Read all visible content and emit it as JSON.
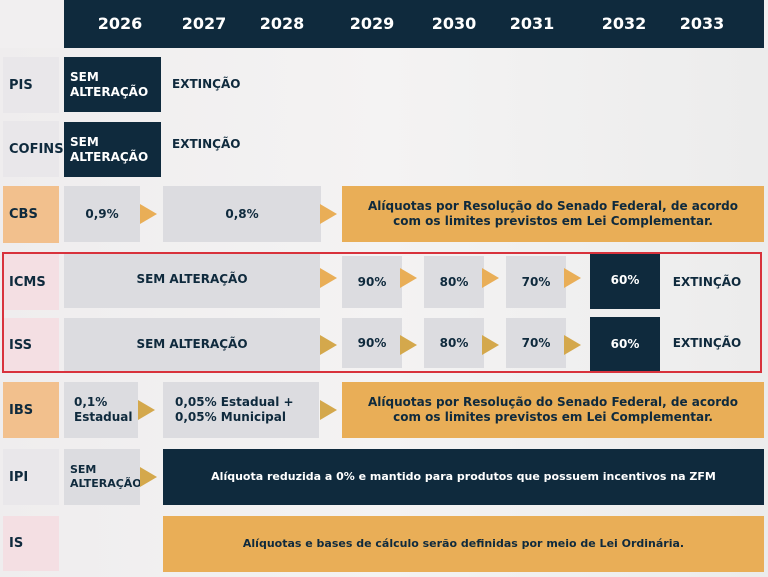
{
  "years": [
    "2026",
    "2027",
    "2028",
    "2029",
    "2030",
    "2031",
    "2032",
    "2033"
  ],
  "rows": {
    "pis": {
      "label": "PIS",
      "c2026": "SEM ALTERAÇÃO",
      "c2027": "EXTINÇÃO"
    },
    "cofins": {
      "label": "COFINS",
      "c2026": "SEM ALTERAÇÃO",
      "c2027": "EXTINÇÃO"
    },
    "cbs": {
      "label": "CBS",
      "c2026": "0,9%",
      "c2027": "0,8%",
      "rest": "Alíquotas por Resolução do Senado Federal, de acordo com os limites previstos em Lei Complementar."
    },
    "icms": {
      "label": "ICMS",
      "base": "SEM ALTERAÇÃO",
      "c2029": "90%",
      "c2030": "80%",
      "c2031": "70%",
      "c2032": "60%",
      "c2033": "EXTINÇÃO"
    },
    "iss": {
      "label": "ISS",
      "base": "SEM ALTERAÇÃO",
      "c2029": "90%",
      "c2030": "80%",
      "c2031": "70%",
      "c2032": "60%",
      "c2033": "EXTINÇÃO"
    },
    "ibs": {
      "label": "IBS",
      "c2026": "0,1% Estadual",
      "c2027": "0,05% Estadual + 0,05% Municipal",
      "rest": "Alíquotas por Resolução do Senado Federal, de acordo com os limites previstos em Lei Complementar."
    },
    "ipi": {
      "label": "IPI",
      "c2026": "SEM ALTERAÇÃO",
      "rest": "Alíquota reduzida a 0% e mantido para produtos que possuem incentivos na ZFM"
    },
    "is": {
      "label": "IS",
      "rest": "Alíquotas e bases de cálculo serão definidas por meio de Lei Ordinária."
    }
  },
  "colors": {
    "navy": "#0f2a3d",
    "gold": "#e9ae57",
    "grey": "#dcdce0",
    "highlight": "#d8323c"
  }
}
